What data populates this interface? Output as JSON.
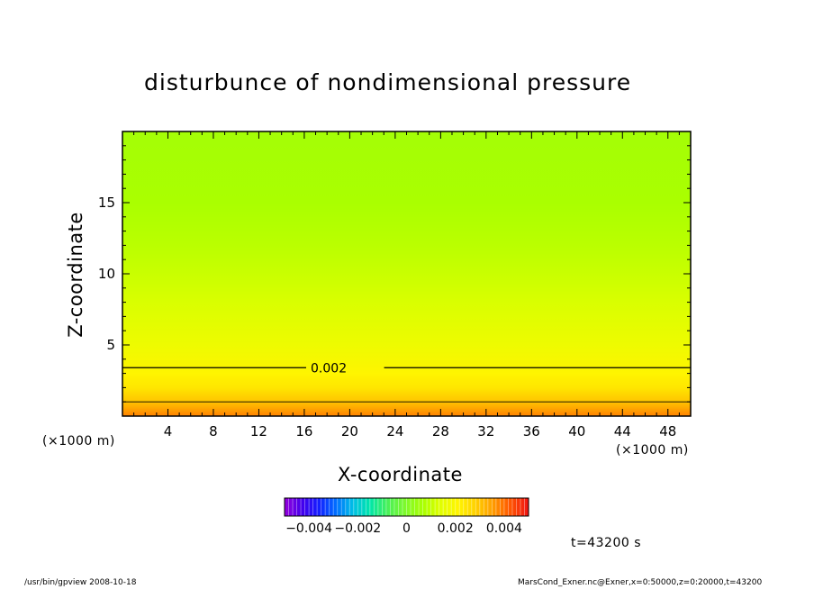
{
  "chart_data": {
    "type": "heatmap",
    "title": "disturbunce of nondimensional pressure",
    "xlabel": "X-coordinate",
    "ylabel": "Z-coordinate",
    "x_unit": "(×1000 m)",
    "y_unit": "(×1000 m)",
    "xlim": [
      0,
      50
    ],
    "ylim": [
      0,
      20
    ],
    "x_ticks": [
      4,
      8,
      12,
      16,
      20,
      24,
      28,
      32,
      36,
      40,
      44,
      48
    ],
    "y_ticks": [
      5,
      10,
      15
    ],
    "field_profile": {
      "z": [
        0,
        1,
        2,
        3,
        3.4,
        5,
        8,
        10,
        12,
        15,
        20
      ],
      "value": [
        0.0038,
        0.003,
        0.0024,
        0.0021,
        0.002,
        0.0017,
        0.0013,
        0.0011,
        0.0009,
        0.0007,
        0.0006
      ]
    },
    "contours": [
      {
        "level": 0.002,
        "z": 3.4,
        "label": "0.002"
      },
      {
        "level": 0.003,
        "z": 1.0,
        "label": ""
      }
    ],
    "colorbar": {
      "range": [
        -0.005,
        0.005
      ],
      "tick_values": [
        -0.004,
        -0.002,
        0,
        0.002,
        0.004
      ],
      "tick_labels": [
        "-0.004",
        "-0.002",
        "0",
        "0.002",
        "0.004"
      ]
    },
    "time_label": "t=43200 s"
  },
  "footer": {
    "left": "/usr/bin/gpview   2008-10-18",
    "right": "MarsCond_Exner.nc@Exner,x=0:50000,z=0:20000,t=43200"
  }
}
